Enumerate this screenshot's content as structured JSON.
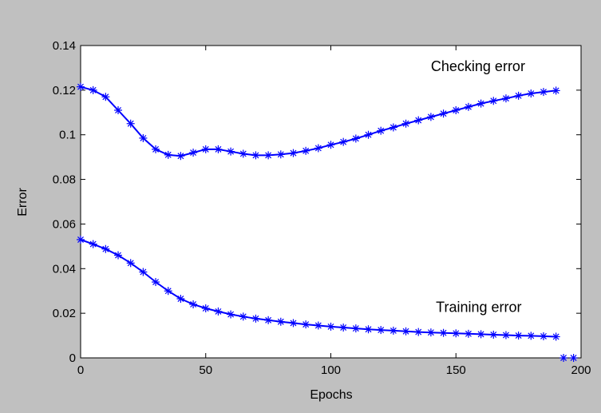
{
  "chart_data": {
    "type": "line",
    "title": "",
    "xlabel": "Epochs",
    "ylabel": "Error",
    "xlim": [
      0,
      200
    ],
    "ylim": [
      0,
      0.14
    ],
    "x_ticks": [
      0,
      50,
      100,
      150,
      200
    ],
    "x_tick_labels": [
      "0",
      "50",
      "100",
      "150",
      "200"
    ],
    "y_ticks": [
      0,
      0.02,
      0.04,
      0.06,
      0.08,
      0.1,
      0.12,
      0.14
    ],
    "y_tick_labels": [
      "0",
      "0.02",
      "0.04",
      "0.06",
      "0.08",
      "0.1",
      "0.12",
      "0.14"
    ],
    "grid": false,
    "legend": "none",
    "line_color": "#0000ff",
    "marker": "asterisk",
    "annotations": [
      {
        "text": "Checking error",
        "x": 140,
        "y": 0.1285
      },
      {
        "text": "Training error",
        "x": 142,
        "y": 0.0205
      }
    ],
    "series": [
      {
        "x": [
          0,
          5,
          10,
          15,
          20,
          25,
          30,
          35,
          40,
          45,
          50,
          55,
          60,
          65,
          70,
          75,
          80,
          85,
          90,
          95,
          100,
          105,
          110,
          115,
          120,
          125,
          130,
          135,
          140,
          145,
          150,
          155,
          160,
          165,
          170,
          175,
          180,
          185,
          190
        ],
        "values": [
          0.1215,
          0.12,
          0.117,
          0.111,
          0.105,
          0.0985,
          0.0935,
          0.091,
          0.0905,
          0.092,
          0.0935,
          0.0935,
          0.0925,
          0.0915,
          0.0908,
          0.0908,
          0.0912,
          0.0918,
          0.0928,
          0.094,
          0.0955,
          0.0968,
          0.0983,
          0.1,
          0.1018,
          0.1033,
          0.105,
          0.1065,
          0.108,
          0.1095,
          0.111,
          0.1125,
          0.114,
          0.1152,
          0.1163,
          0.1175,
          0.1185,
          0.1192,
          0.1198
        ]
      },
      {
        "x": [
          0,
          5,
          10,
          15,
          20,
          25,
          30,
          35,
          40,
          45,
          50,
          55,
          60,
          65,
          70,
          75,
          80,
          85,
          90,
          95,
          100,
          105,
          110,
          115,
          120,
          125,
          130,
          135,
          140,
          145,
          150,
          155,
          160,
          165,
          170,
          175,
          180,
          185,
          190
        ],
        "values": [
          0.053,
          0.051,
          0.0488,
          0.046,
          0.0425,
          0.0385,
          0.034,
          0.03,
          0.0265,
          0.024,
          0.0222,
          0.0208,
          0.0195,
          0.0185,
          0.0176,
          0.0169,
          0.0162,
          0.0156,
          0.015,
          0.0145,
          0.014,
          0.0136,
          0.0132,
          0.0128,
          0.0125,
          0.0122,
          0.0119,
          0.0116,
          0.0114,
          0.0112,
          0.011,
          0.0108,
          0.0106,
          0.0104,
          0.0102,
          0.01,
          0.0099,
          0.0097,
          0.0095
        ]
      },
      {
        "x": [
          193,
          197
        ],
        "values": [
          0,
          0
        ]
      }
    ]
  }
}
